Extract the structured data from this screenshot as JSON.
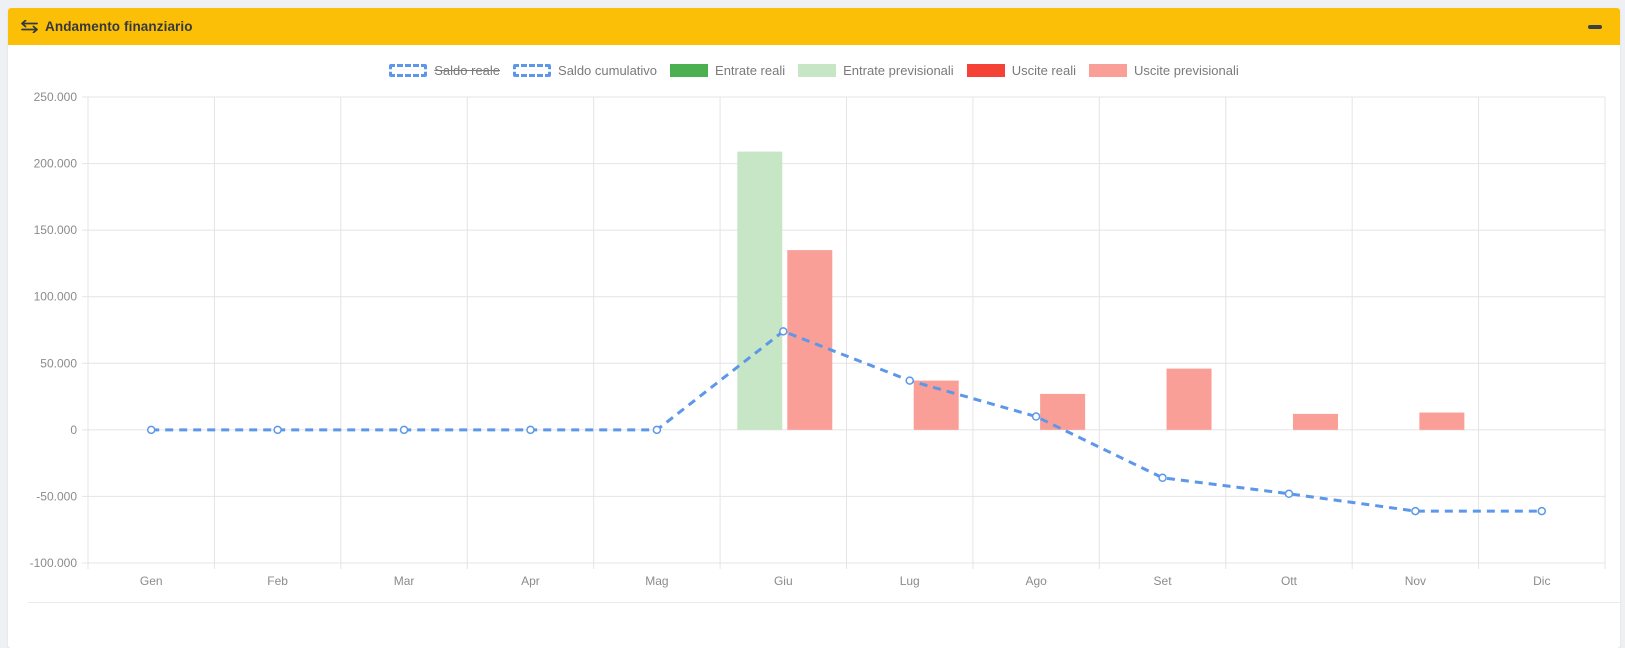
{
  "panel": {
    "title": "Andamento finanziario",
    "header_color": "#fcbf07",
    "title_icon": "exchange-arrows",
    "collapse_icon": "minus"
  },
  "chart_data": {
    "type": "mixed-bar-line",
    "title": "",
    "categories": [
      "Gen",
      "Feb",
      "Mar",
      "Apr",
      "Mag",
      "Giu",
      "Lug",
      "Ago",
      "Set",
      "Ott",
      "Nov",
      "Dic"
    ],
    "ylim": [
      -100000,
      250000
    ],
    "grid": true,
    "legend_position": "top",
    "y_ticks": [
      {
        "value": 250000,
        "label": "250.000"
      },
      {
        "value": 200000,
        "label": "200.000"
      },
      {
        "value": 150000,
        "label": "150.000"
      },
      {
        "value": 100000,
        "label": "100.000"
      },
      {
        "value": 50000,
        "label": "50.000"
      },
      {
        "value": 0,
        "label": "0"
      },
      {
        "value": -50000,
        "label": "-50.000"
      },
      {
        "value": -100000,
        "label": "-100.000"
      }
    ],
    "series": [
      {
        "name": "Saldo reale",
        "slug": "saldo-reale",
        "type": "line",
        "hidden": true,
        "dashed": true,
        "color": "#5d97e9",
        "values": null
      },
      {
        "name": "Saldo cumulativo",
        "slug": "saldo-cumulativo",
        "type": "line",
        "hidden": false,
        "dashed": true,
        "color": "#5d97e9",
        "values": [
          0,
          0,
          0,
          0,
          0,
          74000,
          37000,
          10000,
          -36000,
          -48000,
          -61000,
          -61000
        ]
      },
      {
        "name": "Entrate reali",
        "slug": "entrate-reali",
        "type": "bar",
        "hidden": false,
        "group": 0,
        "color": "#4caf50",
        "values": [
          0,
          0,
          0,
          0,
          0,
          0,
          0,
          0,
          0,
          0,
          0,
          0
        ]
      },
      {
        "name": "Entrate previsionali",
        "slug": "entrate-previsionali",
        "type": "bar",
        "hidden": false,
        "group": 0,
        "color": "#c7e6c6",
        "values": [
          0,
          0,
          0,
          0,
          0,
          209000,
          0,
          0,
          0,
          0,
          0,
          0
        ]
      },
      {
        "name": "Uscite reali",
        "slug": "uscite-reali",
        "type": "bar",
        "hidden": false,
        "group": 1,
        "color": "#f44336",
        "values": [
          0,
          0,
          0,
          0,
          0,
          0,
          0,
          0,
          0,
          0,
          0,
          0
        ]
      },
      {
        "name": "Uscite previsionali",
        "slug": "uscite-previsionali",
        "type": "bar",
        "hidden": false,
        "group": 1,
        "color": "#fa9f97",
        "values": [
          0,
          0,
          0,
          0,
          0,
          135000,
          37000,
          27000,
          46000,
          12000,
          13000,
          0
        ]
      }
    ],
    "axis_style": {
      "grid_color": "#e4e4e4",
      "tick_text_color": "#8b8b8b",
      "tick_font_size": 12
    }
  }
}
